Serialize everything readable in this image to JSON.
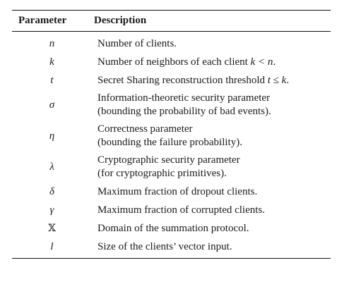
{
  "table": {
    "headers": {
      "parameter": "Parameter",
      "description": "Description"
    },
    "rows": [
      {
        "symbol": "n",
        "line1": "Number of clients."
      },
      {
        "symbol": "k",
        "line1_pre": "Number of neighbors of each client ",
        "line1_math": "k < n",
        "line1_post": "."
      },
      {
        "symbol": "t",
        "line1_pre": "Secret Sharing reconstruction threshold ",
        "line1_math": "t ≤ k",
        "line1_post": "."
      },
      {
        "symbol": "σ",
        "line1": "Information-theoretic security parameter",
        "line2": "(bounding the probability of bad events)."
      },
      {
        "symbol": "η",
        "line1": "Correctness parameter",
        "line2": "(bounding the failure probability)."
      },
      {
        "symbol": "λ",
        "line1": "Cryptographic security parameter",
        "line2": "(for cryptographic primitives)."
      },
      {
        "symbol": "δ",
        "line1": "Maximum fraction of dropout clients."
      },
      {
        "symbol": "γ",
        "line1": "Maximum fraction of corrupted clients."
      },
      {
        "symbol": "𝕏",
        "line1": "Domain of the summation protocol."
      },
      {
        "symbol": "l",
        "line1": "Size of the clients’ vector input."
      }
    ]
  }
}
